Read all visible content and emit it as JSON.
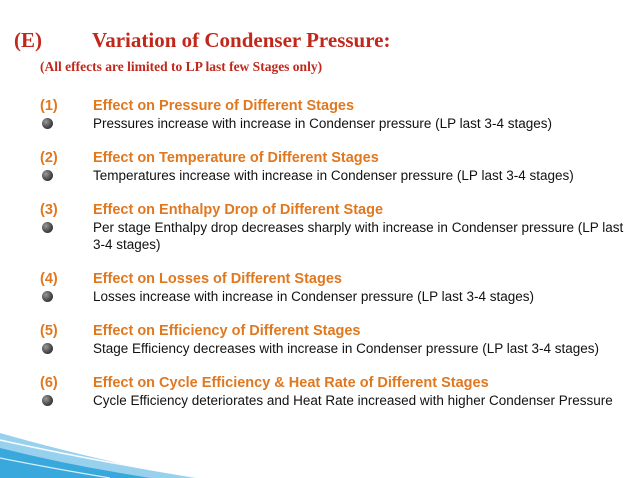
{
  "title": {
    "number": "(E)",
    "text": "Variation of Condenser Pressure:"
  },
  "subtitle": "(All effects are limited to LP last few Stages only)",
  "items": [
    {
      "number": "(1)",
      "heading": "Effect on Pressure of Different Stages",
      "text": "Pressures increase with increase in Condenser pressure (LP last 3-4 stages)"
    },
    {
      "number": "(2)",
      "heading": "Effect on Temperature of Different Stages",
      "text": "Temperatures increase with increase in Condenser pressure (LP last 3-4 stages)"
    },
    {
      "number": "(3)",
      "heading": "Effect on Enthalpy Drop of Different Stage",
      "text": "Per stage Enthalpy drop decreases sharply  with increase in Condenser pressure (LP last 3-4 stages)"
    },
    {
      "number": "(4)",
      "heading": "Effect on Losses of Different Stages",
      "text": "Losses increase with increase in Condenser pressure (LP last 3-4 stages)"
    },
    {
      "number": "(5)",
      "heading": "Effect on Efficiency of Different Stages",
      "text": "Stage Efficiency decreases with increase in Condenser pressure (LP last 3-4 stages)"
    },
    {
      "number": "(6)",
      "heading": "Effect on Cycle Efficiency & Heat Rate of Different Stages",
      "text": "Cycle Efficiency deteriorates and Heat Rate increased with higher Condenser Pressure"
    }
  ],
  "colors": {
    "title": "#c0281c",
    "heading": "#e07820",
    "text": "#111111",
    "decor": "#1a9ad6"
  },
  "icons": {
    "bullet": "gray-sphere-bullet-icon"
  }
}
